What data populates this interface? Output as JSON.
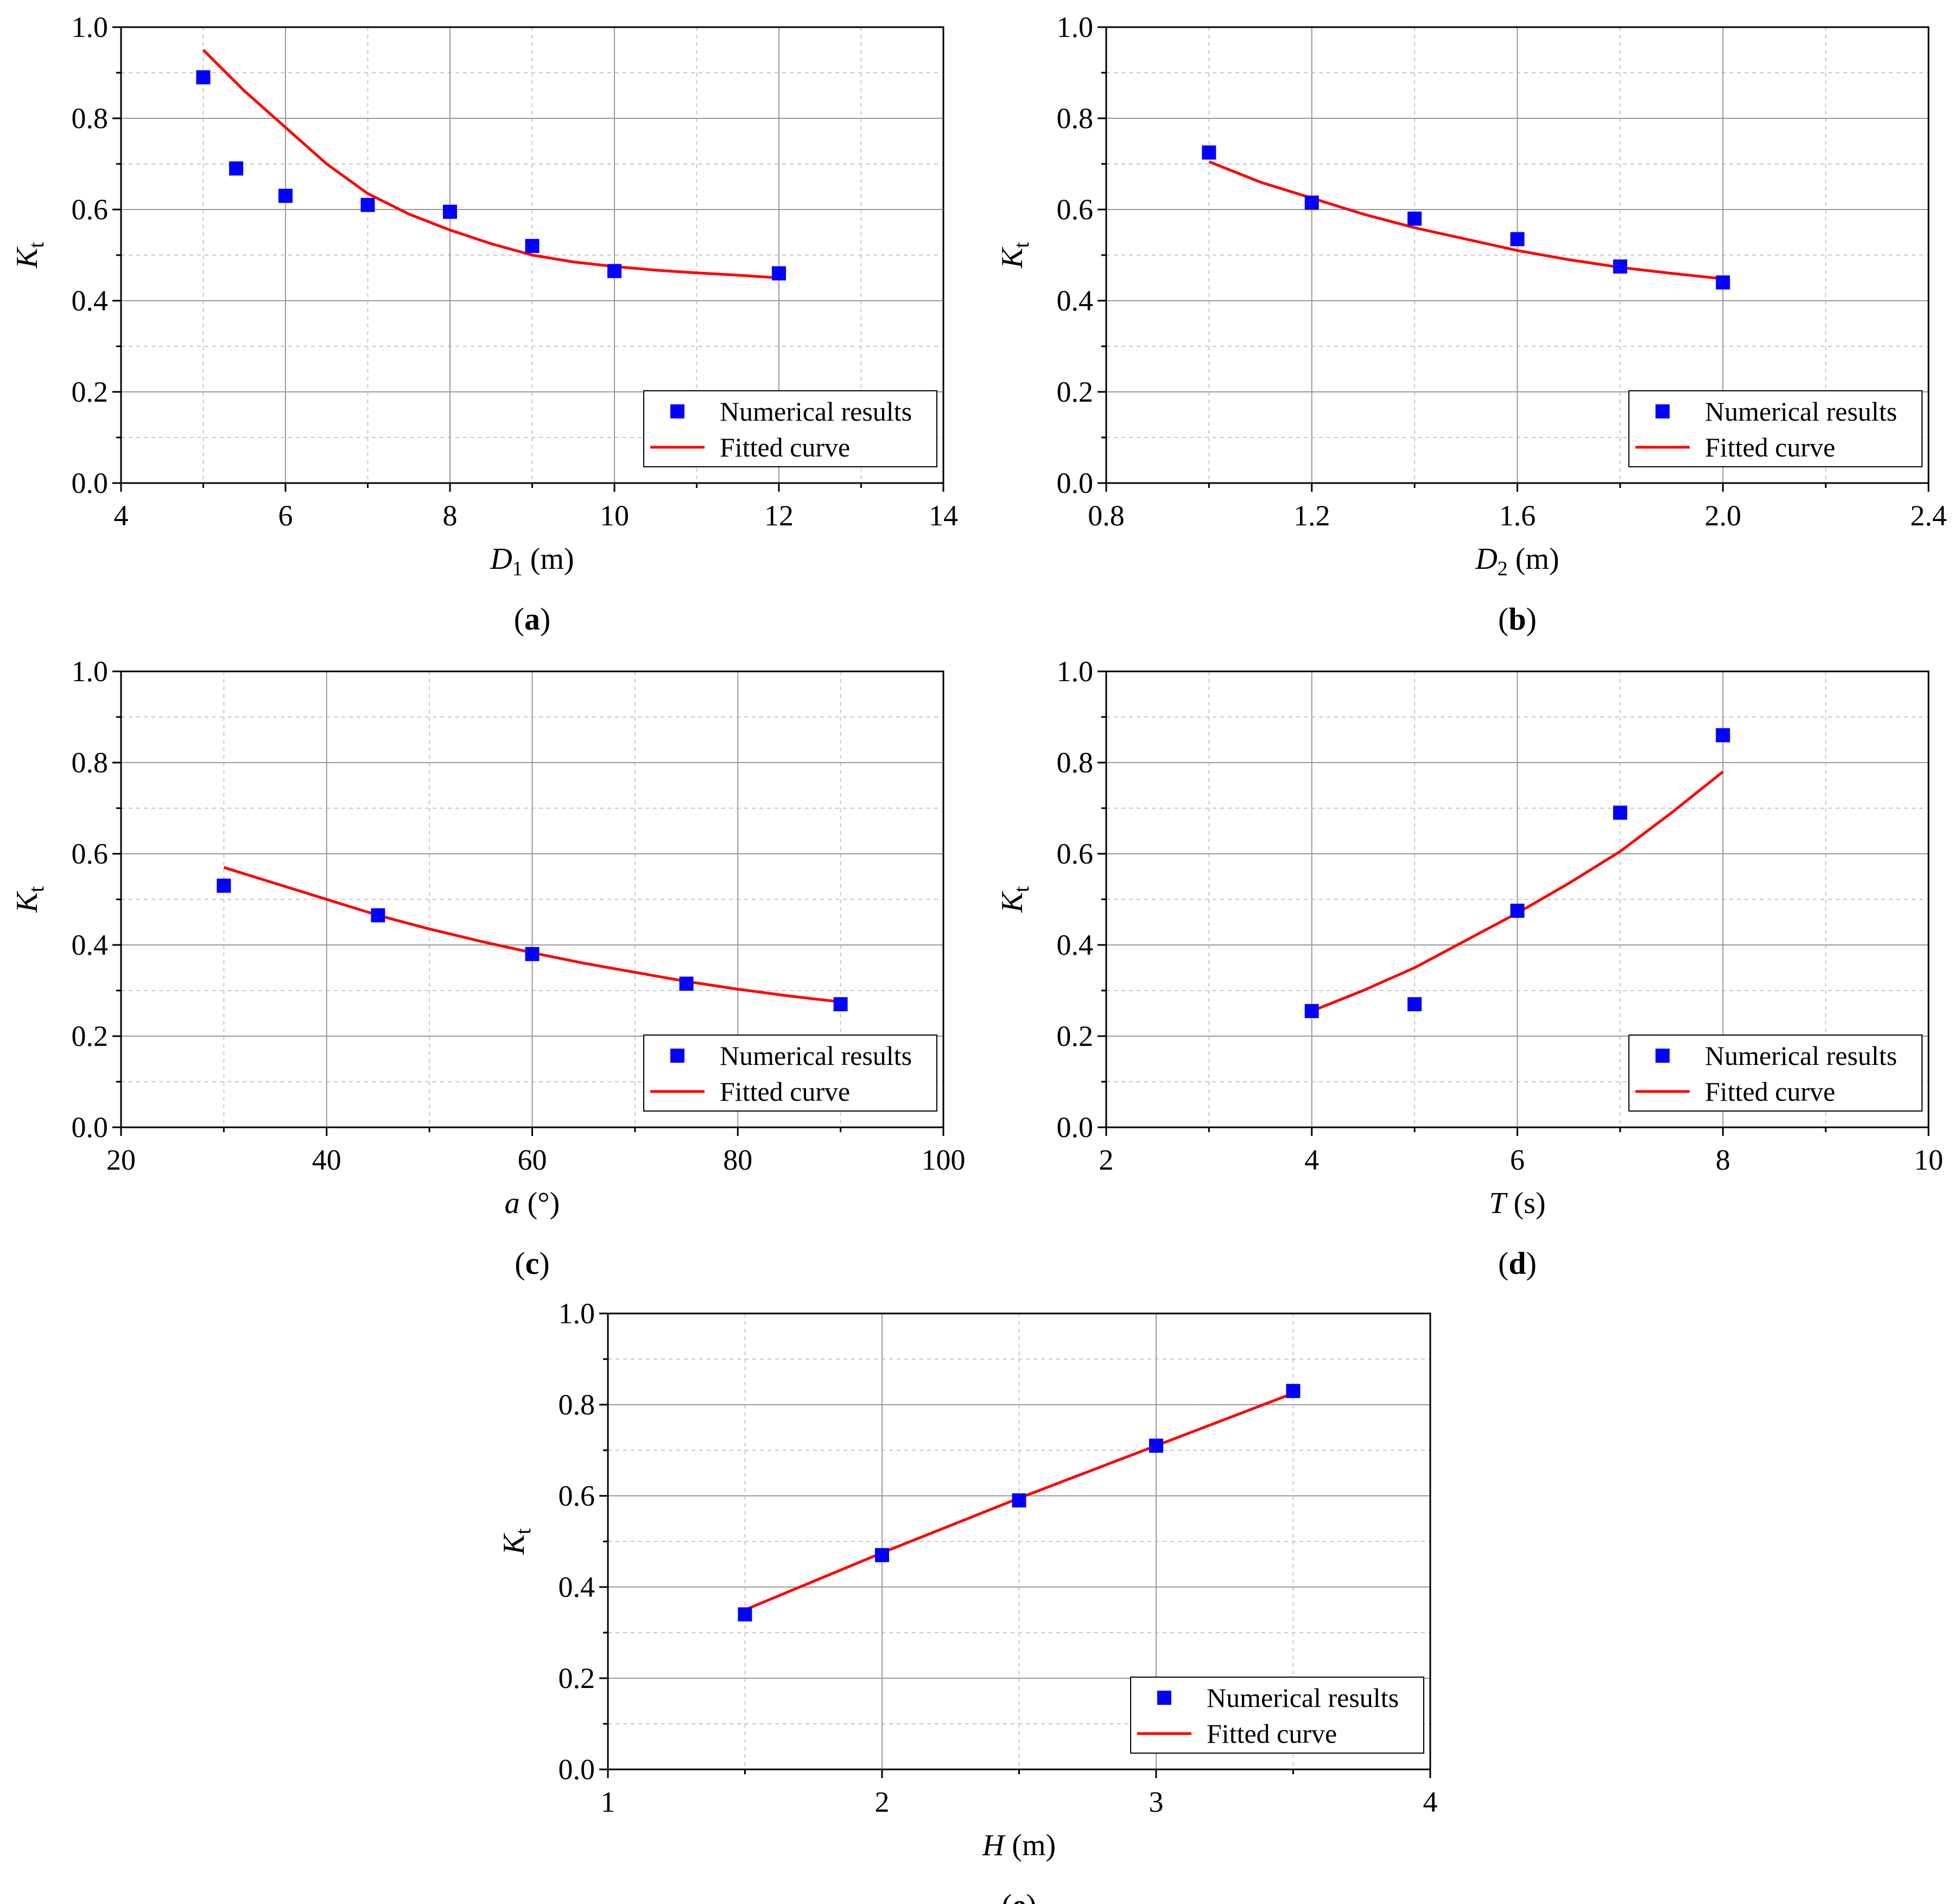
{
  "figure": {
    "legend": {
      "points_label": "Numerical results",
      "line_label": "Fitted curve"
    },
    "colors": {
      "points": "#0000ff",
      "line": "#ff0000",
      "grid_major": "#9a9a9a",
      "grid_minor": "#c8c8c8",
      "axis": "#000000"
    }
  },
  "chart_data": [
    {
      "id": "a",
      "type": "scatter",
      "caption": "a",
      "xlabel": {
        "var": "D",
        "sub": "1",
        "unit": " (m)"
      },
      "ylabel": {
        "var": "K",
        "sub": "t"
      },
      "xlim": [
        4,
        14
      ],
      "ylim": [
        0,
        1.0
      ],
      "xticks": [
        4,
        6,
        8,
        10,
        12,
        14
      ],
      "xtick_labels": [
        "4",
        "6",
        "8",
        "10",
        "12",
        "14"
      ],
      "xminor": [
        5,
        7,
        9,
        11,
        13
      ],
      "yticks": [
        0,
        0.2,
        0.4,
        0.6,
        0.8,
        1.0
      ],
      "ytick_labels": [
        "0.0",
        "0.2",
        "0.4",
        "0.6",
        "0.8",
        "1.0"
      ],
      "yminor": [
        0.1,
        0.3,
        0.5,
        0.7,
        0.9
      ],
      "series": [
        {
          "name": "Numerical results",
          "kind": "points",
          "x": [
            5,
            5.4,
            6,
            7,
            8,
            9,
            10,
            12
          ],
          "y": [
            0.89,
            0.69,
            0.63,
            0.61,
            0.595,
            0.52,
            0.465,
            0.46
          ]
        },
        {
          "name": "Fitted curve",
          "kind": "line",
          "x": [
            5,
            5.5,
            6,
            6.5,
            7,
            7.5,
            8,
            8.5,
            9,
            9.5,
            10,
            10.5,
            11,
            11.5,
            12
          ],
          "y": [
            0.95,
            0.86,
            0.78,
            0.7,
            0.635,
            0.59,
            0.555,
            0.525,
            0.5,
            0.485,
            0.475,
            0.467,
            0.461,
            0.456,
            0.45
          ]
        }
      ],
      "legend_position": "bottom-right"
    },
    {
      "id": "b",
      "type": "scatter",
      "caption": "b",
      "xlabel": {
        "var": "D",
        "sub": "2",
        "unit": " (m)"
      },
      "ylabel": {
        "var": "K",
        "sub": "t"
      },
      "xlim": [
        0.8,
        2.4
      ],
      "ylim": [
        0,
        1.0
      ],
      "xticks": [
        0.8,
        1.2,
        1.6,
        2.0,
        2.4
      ],
      "xtick_labels": [
        "0.8",
        "1.2",
        "1.6",
        "2.0",
        "2.4"
      ],
      "xminor": [
        1.0,
        1.4,
        1.8,
        2.2
      ],
      "yticks": [
        0,
        0.2,
        0.4,
        0.6,
        0.8,
        1.0
      ],
      "ytick_labels": [
        "0.0",
        "0.2",
        "0.4",
        "0.6",
        "0.8",
        "1.0"
      ],
      "yminor": [
        0.1,
        0.3,
        0.5,
        0.7,
        0.9
      ],
      "series": [
        {
          "name": "Numerical results",
          "kind": "points",
          "x": [
            1.0,
            1.2,
            1.4,
            1.6,
            1.8,
            2.0
          ],
          "y": [
            0.725,
            0.615,
            0.58,
            0.535,
            0.475,
            0.44
          ]
        },
        {
          "name": "Fitted curve",
          "kind": "line",
          "x": [
            1.0,
            1.1,
            1.2,
            1.3,
            1.4,
            1.5,
            1.6,
            1.7,
            1.8,
            1.9,
            2.0
          ],
          "y": [
            0.705,
            0.66,
            0.625,
            0.59,
            0.56,
            0.535,
            0.51,
            0.49,
            0.473,
            0.46,
            0.448
          ]
        }
      ],
      "legend_position": "bottom-right"
    },
    {
      "id": "c",
      "type": "scatter",
      "caption": "c",
      "xlabel": {
        "var": "a",
        "sub": "",
        "unit": " (°)"
      },
      "ylabel": {
        "var": "K",
        "sub": "t"
      },
      "xlim": [
        20,
        100
      ],
      "ylim": [
        0,
        1.0
      ],
      "xticks": [
        20,
        40,
        60,
        80,
        100
      ],
      "xtick_labels": [
        "20",
        "40",
        "60",
        "80",
        "100"
      ],
      "xminor": [
        30,
        50,
        70,
        90
      ],
      "yticks": [
        0,
        0.2,
        0.4,
        0.6,
        0.8,
        1.0
      ],
      "ytick_labels": [
        "0.0",
        "0.2",
        "0.4",
        "0.6",
        "0.8",
        "1.0"
      ],
      "yminor": [
        0.1,
        0.3,
        0.5,
        0.7,
        0.9
      ],
      "series": [
        {
          "name": "Numerical results",
          "kind": "points",
          "x": [
            30,
            45,
            60,
            75,
            90
          ],
          "y": [
            0.53,
            0.465,
            0.38,
            0.315,
            0.27
          ]
        },
        {
          "name": "Fitted curve",
          "kind": "line",
          "x": [
            30,
            35,
            40,
            45,
            50,
            55,
            60,
            65,
            70,
            75,
            80,
            85,
            90
          ],
          "y": [
            0.57,
            0.535,
            0.5,
            0.465,
            0.435,
            0.408,
            0.383,
            0.36,
            0.34,
            0.32,
            0.303,
            0.288,
            0.275
          ]
        }
      ],
      "legend_position": "bottom-right"
    },
    {
      "id": "d",
      "type": "scatter",
      "caption": "d",
      "xlabel": {
        "var": "T",
        "sub": "",
        "unit": " (s)"
      },
      "ylabel": {
        "var": "K",
        "sub": "t"
      },
      "xlim": [
        2,
        10
      ],
      "ylim": [
        0,
        1.0
      ],
      "xticks": [
        2,
        4,
        6,
        8,
        10
      ],
      "xtick_labels": [
        "2",
        "4",
        "6",
        "8",
        "10"
      ],
      "xminor": [
        3,
        5,
        7,
        9
      ],
      "yticks": [
        0,
        0.2,
        0.4,
        0.6,
        0.8,
        1.0
      ],
      "ytick_labels": [
        "0.0",
        "0.2",
        "0.4",
        "0.6",
        "0.8",
        "1.0"
      ],
      "yminor": [
        0.1,
        0.3,
        0.5,
        0.7,
        0.9
      ],
      "series": [
        {
          "name": "Numerical results",
          "kind": "points",
          "x": [
            4,
            5,
            6,
            7,
            8
          ],
          "y": [
            0.255,
            0.27,
            0.475,
            0.69,
            0.86
          ]
        },
        {
          "name": "Fitted curve",
          "kind": "line",
          "x": [
            4,
            4.5,
            5,
            5.5,
            6,
            6.5,
            7,
            7.5,
            8
          ],
          "y": [
            0.255,
            0.3,
            0.35,
            0.41,
            0.47,
            0.535,
            0.605,
            0.69,
            0.78
          ]
        }
      ],
      "legend_position": "bottom-right"
    },
    {
      "id": "e",
      "type": "scatter",
      "caption": "e",
      "xlabel": {
        "var": "H",
        "sub": "",
        "unit": " (m)"
      },
      "ylabel": {
        "var": "K",
        "sub": "t"
      },
      "xlim": [
        1,
        4
      ],
      "ylim": [
        0,
        1.0
      ],
      "xticks": [
        1,
        2,
        3,
        4
      ],
      "xtick_labels": [
        "1",
        "2",
        "3",
        "4"
      ],
      "xminor": [
        1.5,
        2.5,
        3.5
      ],
      "yticks": [
        0,
        0.2,
        0.4,
        0.6,
        0.8,
        1.0
      ],
      "ytick_labels": [
        "0.0",
        "0.2",
        "0.4",
        "0.6",
        "0.8",
        "1.0"
      ],
      "yminor": [
        0.1,
        0.3,
        0.5,
        0.7,
        0.9
      ],
      "series": [
        {
          "name": "Numerical results",
          "kind": "points",
          "x": [
            1.5,
            2,
            2.5,
            3,
            3.5
          ],
          "y": [
            0.34,
            0.47,
            0.59,
            0.71,
            0.83
          ]
        },
        {
          "name": "Fitted curve",
          "kind": "line",
          "x": [
            1.5,
            2,
            2.5,
            3,
            3.5
          ],
          "y": [
            0.35,
            0.475,
            0.595,
            0.71,
            0.825
          ]
        }
      ],
      "legend_position": "bottom-right"
    }
  ]
}
